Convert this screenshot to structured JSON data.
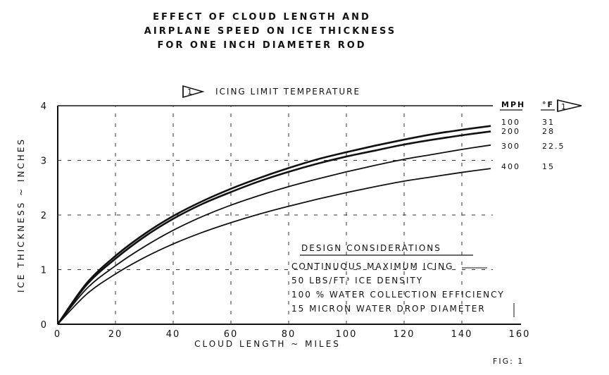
{
  "chart_data": {
    "type": "line",
    "title": [
      "EFFECT OF CLOUD LENGTH AND",
      "AIRPLANE SPEED ON ICE THICKNESS",
      "FOR ONE INCH DIAMETER ROD"
    ],
    "xlabel": "CLOUD LENGTH ~ MILES",
    "ylabel": "ICE THICKNESS ~ INCHES",
    "xlim": [
      0,
      160
    ],
    "ylim": [
      0,
      4
    ],
    "xticks": [
      "0",
      "20",
      "40",
      "60",
      "80",
      "100",
      "120",
      "140",
      "160"
    ],
    "yticks": [
      "0",
      "1",
      "2",
      "3",
      "4"
    ],
    "grid": true,
    "icing_limit_marker": "1",
    "icing_limit_label": "ICING LIMIT TEMPERATURE",
    "legend_headers": {
      "speed": "MPH",
      "temperature": "°F"
    },
    "x": [
      0,
      10,
      20,
      30,
      40,
      50,
      60,
      70,
      80,
      90,
      100,
      110,
      120,
      130,
      140,
      150
    ],
    "series": [
      {
        "name": "100",
        "temperature": "31",
        "values": [
          0,
          0.75,
          1.25,
          1.65,
          1.98,
          2.25,
          2.48,
          2.68,
          2.86,
          3.02,
          3.15,
          3.27,
          3.38,
          3.48,
          3.56,
          3.63
        ]
      },
      {
        "name": "200",
        "temperature": "28",
        "values": [
          0,
          0.72,
          1.2,
          1.6,
          1.93,
          2.2,
          2.42,
          2.62,
          2.79,
          2.94,
          3.07,
          3.18,
          3.29,
          3.38,
          3.46,
          3.53
        ]
      },
      {
        "name": "300",
        "temperature": "22.5",
        "values": [
          0,
          0.65,
          1.07,
          1.42,
          1.72,
          1.97,
          2.18,
          2.36,
          2.52,
          2.66,
          2.79,
          2.91,
          3.02,
          3.11,
          3.2,
          3.28
        ]
      },
      {
        "name": "400",
        "temperature": "15",
        "values": [
          0,
          0.55,
          0.92,
          1.22,
          1.47,
          1.68,
          1.86,
          2.02,
          2.16,
          2.29,
          2.41,
          2.52,
          2.62,
          2.7,
          2.78,
          2.85
        ]
      }
    ],
    "annotation": {
      "heading": "DESIGN CONSIDERATIONS",
      "lines": [
        "CONTINUOUS MAXIMUM ICING",
        "50 LBS/FT³ ICE DENSITY",
        "100 % WATER COLLECTION EFFICIENCY",
        "15 MICRON WATER DROP DIAMETER"
      ]
    },
    "figure_label": "FIG: 1"
  }
}
